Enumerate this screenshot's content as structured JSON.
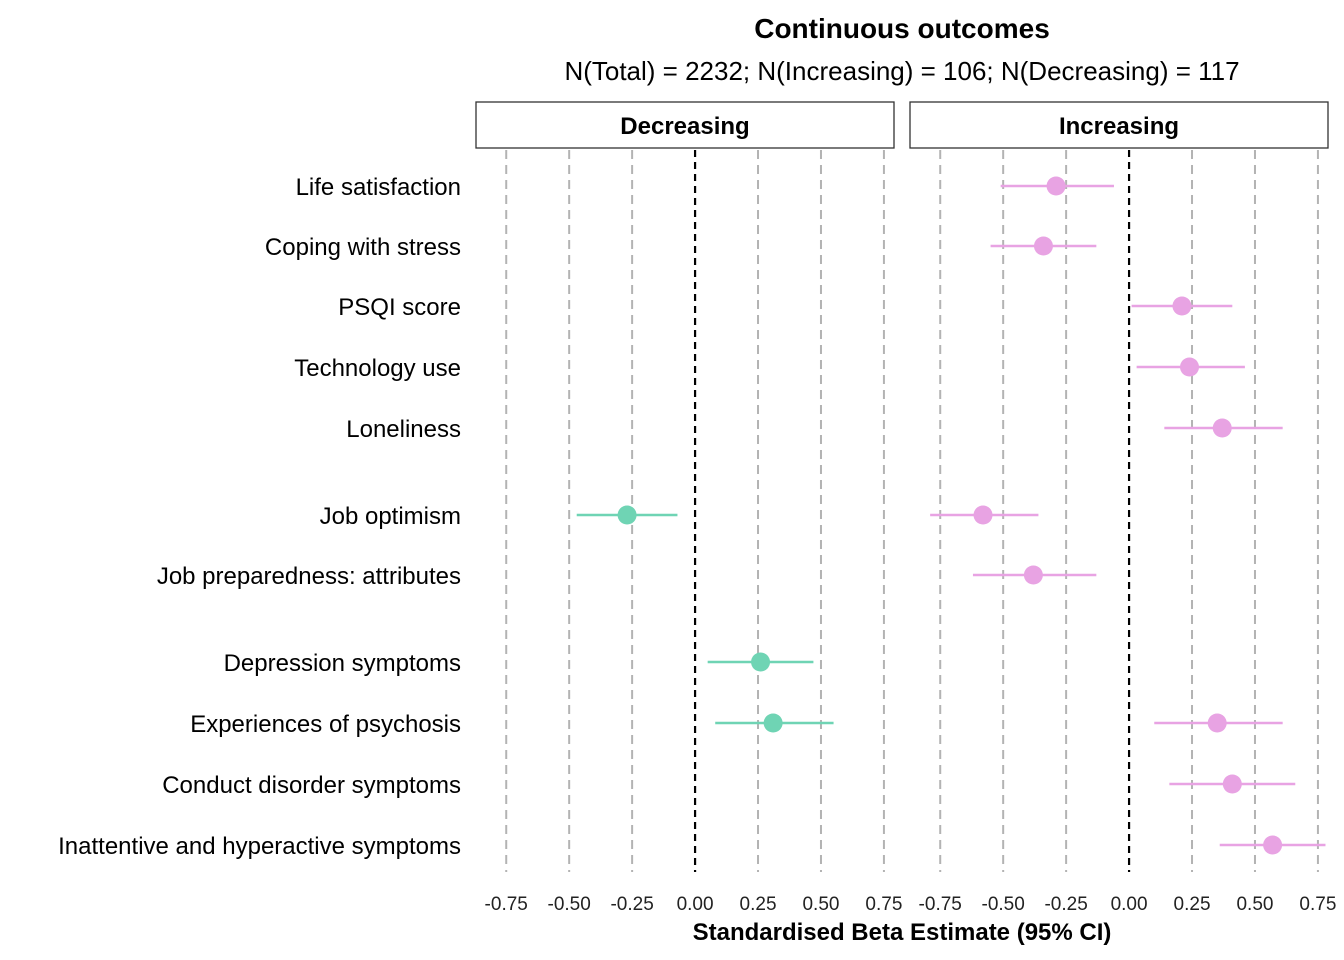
{
  "chart_data": {
    "type": "scatter",
    "subtype": "forest-plot-faceted",
    "title": "Continuous outcomes",
    "subtitle": "N(Total) = 2232; N(Increasing) = 106; N(Decreasing) = 117",
    "xlabel": "Standardised Beta Estimate (95% CI)",
    "xlim": [
      -0.87,
      0.79
    ],
    "xticks": [
      -0.75,
      -0.5,
      -0.25,
      0.0,
      0.25,
      0.5,
      0.75
    ],
    "xtick_labels": [
      "-0.75",
      "-0.50",
      "-0.25",
      "0.00",
      "0.25",
      "0.50",
      "0.75"
    ],
    "grid": "vertical dashed at ticks",
    "reference_line": 0,
    "panels": [
      {
        "name": "Decreasing",
        "color": "#6fd4b4"
      },
      {
        "name": "Increasing",
        "color": "#e8a3e3"
      }
    ],
    "outcomes": [
      "Life satisfaction",
      "Coping with stress",
      "PSQI score",
      "Technology use",
      "Loneliness",
      "Job optimism",
      "Job preparedness: attributes",
      "Depression symptoms",
      "Experiences of psychosis",
      "Conduct disorder symptoms",
      "Inattentive and hyperactive symptoms"
    ],
    "series": [
      {
        "name": "Decreasing",
        "points": [
          {
            "outcome": "Job optimism",
            "estimate": -0.27,
            "lower": -0.47,
            "upper": -0.07
          },
          {
            "outcome": "Depression symptoms",
            "estimate": 0.26,
            "lower": 0.05,
            "upper": 0.47
          },
          {
            "outcome": "Experiences of psychosis",
            "estimate": 0.31,
            "lower": 0.08,
            "upper": 0.55
          }
        ]
      },
      {
        "name": "Increasing",
        "points": [
          {
            "outcome": "Life satisfaction",
            "estimate": -0.29,
            "lower": -0.51,
            "upper": -0.06
          },
          {
            "outcome": "Coping with stress",
            "estimate": -0.34,
            "lower": -0.55,
            "upper": -0.13
          },
          {
            "outcome": "PSQI score",
            "estimate": 0.21,
            "lower": 0.01,
            "upper": 0.41
          },
          {
            "outcome": "Technology use",
            "estimate": 0.24,
            "lower": 0.03,
            "upper": 0.46
          },
          {
            "outcome": "Loneliness",
            "estimate": 0.37,
            "lower": 0.14,
            "upper": 0.61
          },
          {
            "outcome": "Job optimism",
            "estimate": -0.58,
            "lower": -0.79,
            "upper": -0.36
          },
          {
            "outcome": "Job preparedness: attributes",
            "estimate": -0.38,
            "lower": -0.62,
            "upper": -0.13
          },
          {
            "outcome": "Experiences of psychosis",
            "estimate": 0.35,
            "lower": 0.1,
            "upper": 0.61
          },
          {
            "outcome": "Conduct disorder symptoms",
            "estimate": 0.41,
            "lower": 0.16,
            "upper": 0.66
          },
          {
            "outcome": "Inattentive and hyperactive symptoms",
            "estimate": 0.57,
            "lower": 0.36,
            "upper": 0.78
          }
        ]
      }
    ]
  }
}
